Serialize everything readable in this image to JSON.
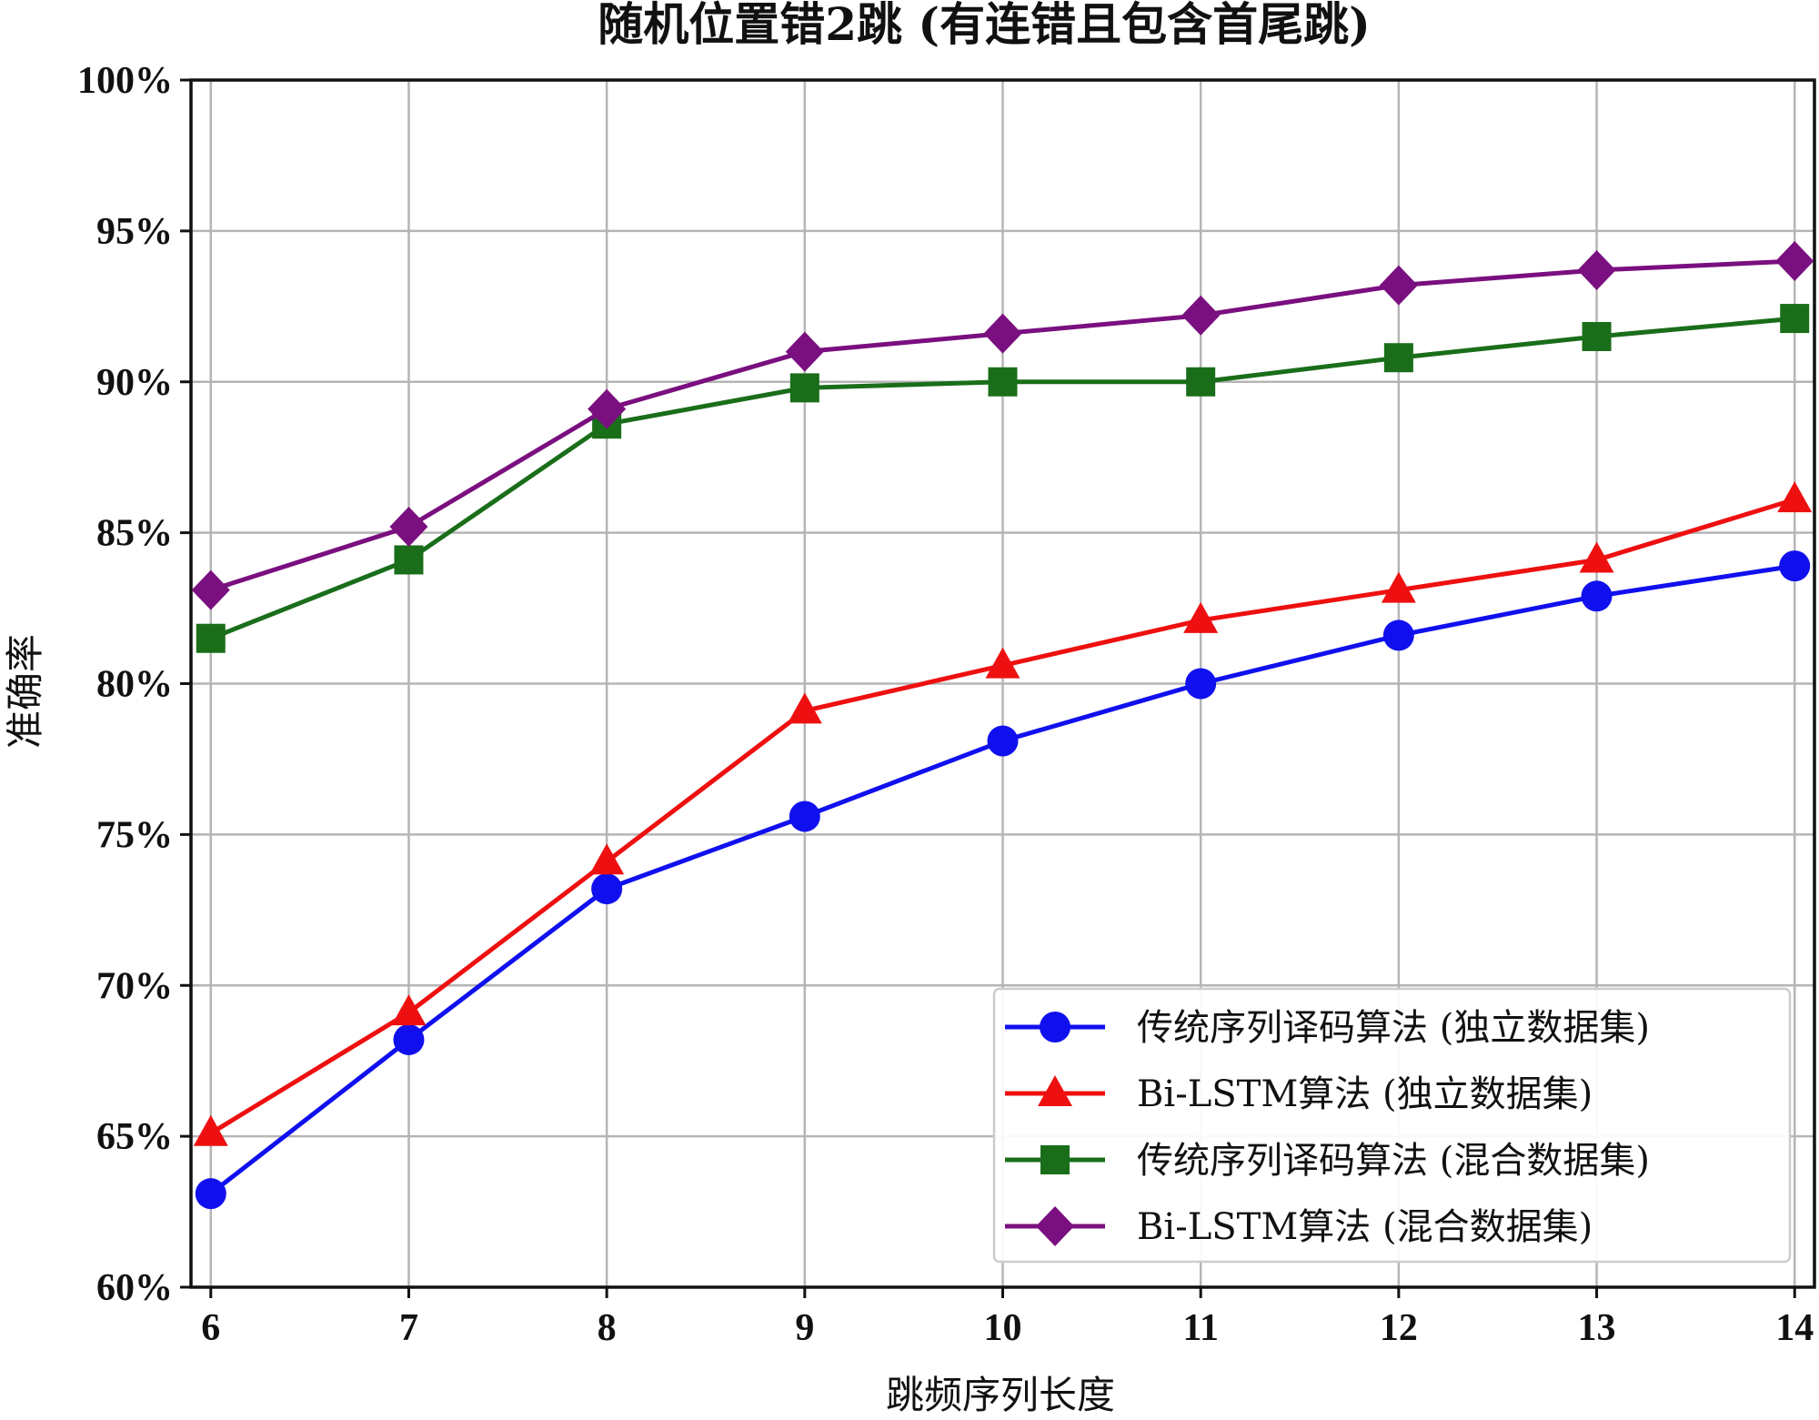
{
  "chart_data": {
    "type": "line",
    "title": "随机位置错2跳 (有连错且包含首尾跳)",
    "xlabel": "跳频序列长度",
    "ylabel": "准确率",
    "x": [
      6,
      7,
      8,
      9,
      10,
      11,
      12,
      13,
      14
    ],
    "xlim": [
      5.9,
      14.1
    ],
    "ylim": [
      60,
      100
    ],
    "yticks": [
      60,
      65,
      70,
      75,
      80,
      85,
      90,
      95,
      100
    ],
    "ytick_suffix": "%",
    "grid": true,
    "legend_position": "lower-right",
    "series": [
      {
        "name": "传统序列译码算法 (独立数据集)",
        "color": "#1010ee",
        "marker": "circle",
        "values": [
          63.1,
          68.2,
          73.2,
          75.6,
          78.1,
          80.0,
          81.6,
          82.9,
          83.9
        ]
      },
      {
        "name": "Bi-LSTM算法 (独立数据集)",
        "color": "#ee1010",
        "marker": "triangle",
        "values": [
          65.1,
          69.1,
          74.1,
          79.1,
          80.6,
          82.1,
          83.1,
          84.1,
          86.1
        ]
      },
      {
        "name": "传统序列译码算法 (混合数据集)",
        "color": "#1a6e1a",
        "marker": "square",
        "values": [
          81.5,
          84.1,
          88.6,
          89.8,
          90.0,
          90.0,
          90.8,
          91.5,
          92.1
        ]
      },
      {
        "name": "Bi-LSTM算法 (混合数据集)",
        "color": "#7a0f7f",
        "marker": "diamond",
        "values": [
          83.1,
          85.2,
          89.1,
          91.0,
          91.6,
          92.2,
          93.2,
          93.7,
          94.0
        ]
      }
    ]
  }
}
